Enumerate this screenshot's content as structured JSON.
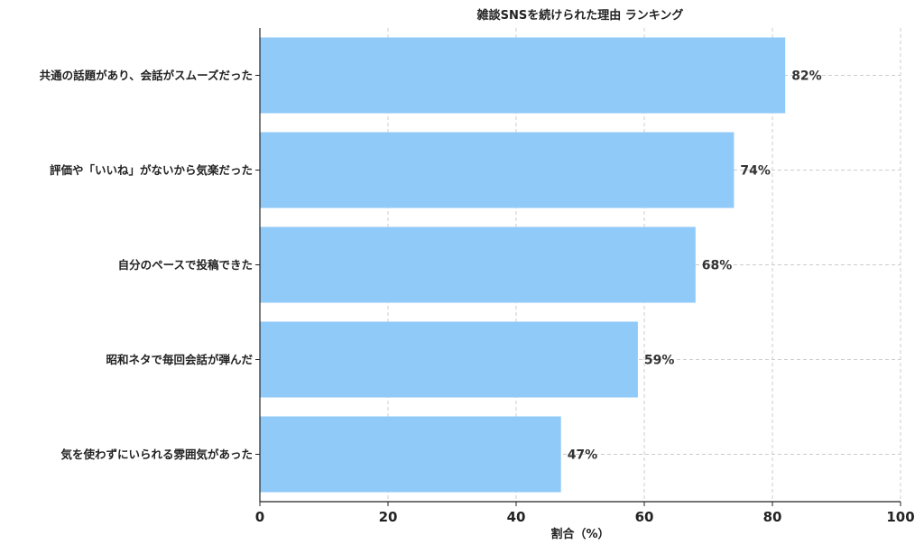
{
  "chart_data": {
    "type": "bar",
    "orientation": "horizontal",
    "title": "雑談SNSを続けられた理由 ランキング",
    "xlabel": "割合（%）",
    "ylabel": "",
    "xlim": [
      0,
      100
    ],
    "x_ticks": [
      0,
      20,
      40,
      60,
      80,
      100
    ],
    "grid": true,
    "grid_style": "dashed",
    "bar_color": "#90CAF9",
    "categories": [
      "共通の話題があり、会話がスムーズだった",
      "評価や「いいね」がないから気楽だった",
      "自分のペースで投稿できた",
      "昭和ネタで毎回会話が弾んだ",
      "気を使わずにいられる雰囲気があった"
    ],
    "values": [
      82,
      74,
      68,
      59,
      47
    ],
    "value_labels": [
      "82%",
      "74%",
      "68%",
      "59%",
      "47%"
    ]
  }
}
